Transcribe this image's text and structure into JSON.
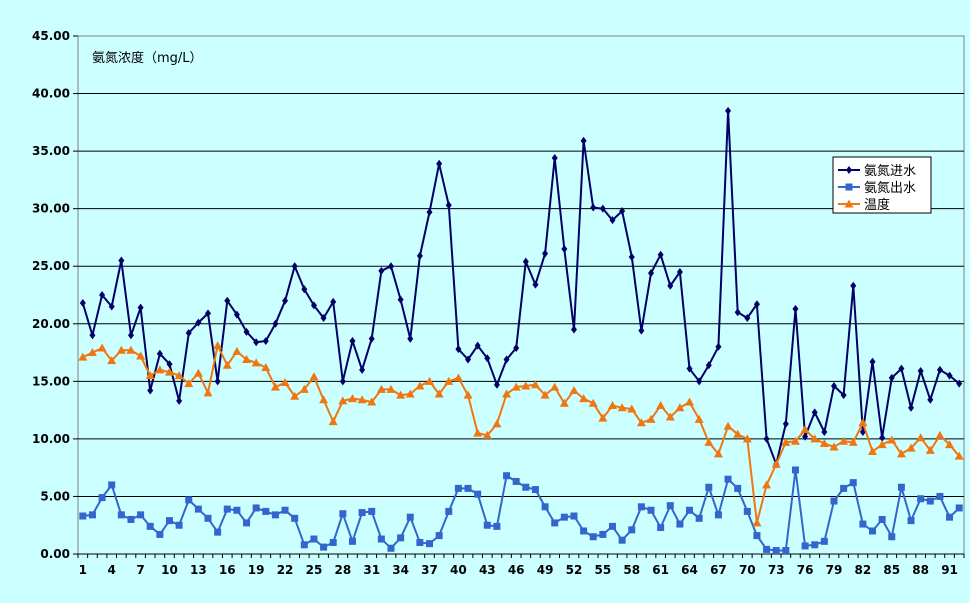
{
  "chart_data": {
    "type": "line",
    "title": "",
    "unit_label": "氨氮浓度（mg/L）",
    "xlabel": "",
    "ylabel": "",
    "ylim": [
      0,
      45
    ],
    "y_ticks": [
      "0.00",
      "5.00",
      "10.00",
      "15.00",
      "20.00",
      "25.00",
      "30.00",
      "35.00",
      "40.00",
      "45.00"
    ],
    "x_tick_labels": [
      1,
      4,
      7,
      10,
      13,
      16,
      19,
      22,
      25,
      28,
      31,
      34,
      37,
      40,
      43,
      46,
      49,
      52,
      55,
      58,
      61,
      64,
      67,
      70,
      73,
      76,
      79,
      82,
      85,
      88,
      91
    ],
    "x_count": 92,
    "grid": true,
    "legend_position": "right",
    "series": [
      {
        "name": "氨氮进水",
        "color": "#000066",
        "marker": "diamond",
        "values": [
          21.8,
          19.0,
          22.5,
          21.5,
          25.5,
          19.0,
          21.4,
          14.2,
          17.4,
          16.5,
          13.3,
          19.2,
          20.1,
          20.9,
          15.0,
          22.0,
          20.8,
          19.3,
          18.4,
          18.5,
          20.0,
          22.0,
          25.0,
          23.0,
          21.6,
          20.5,
          21.9,
          15.0,
          18.5,
          16.0,
          18.7,
          24.6,
          25.0,
          22.1,
          18.7,
          25.9,
          29.7,
          33.9,
          30.3,
          17.8,
          16.9,
          18.1,
          17.0,
          14.7,
          16.9,
          17.9,
          25.4,
          23.4,
          26.1,
          34.4,
          26.5,
          19.5,
          35.9,
          30.1,
          30.0,
          29.0,
          29.8,
          25.8,
          19.4,
          24.4,
          26.0,
          23.3,
          24.5,
          16.1,
          15.0,
          16.4,
          18.0,
          38.5,
          21.0,
          20.5,
          21.7,
          10.0,
          7.8,
          11.3,
          21.3,
          10.2,
          12.3,
          10.6,
          14.6,
          13.8,
          23.3,
          10.6,
          16.7,
          10.1,
          15.3,
          16.1,
          12.7,
          15.9,
          13.4,
          16.0,
          15.5,
          14.8
        ]
      },
      {
        "name": "氨氮出水",
        "color": "#3366cc",
        "marker": "square",
        "values": [
          3.3,
          3.4,
          4.9,
          6.0,
          3.4,
          3.0,
          3.4,
          2.4,
          1.7,
          2.9,
          2.5,
          4.7,
          3.9,
          3.1,
          1.9,
          3.9,
          3.8,
          2.7,
          4.0,
          3.7,
          3.4,
          3.8,
          3.1,
          0.8,
          1.3,
          0.6,
          1.0,
          3.5,
          1.1,
          3.6,
          3.7,
          1.3,
          0.5,
          1.4,
          3.2,
          1.0,
          0.9,
          1.6,
          3.7,
          5.7,
          5.7,
          5.2,
          2.5,
          2.4,
          6.8,
          6.3,
          5.8,
          5.6,
          4.1,
          2.7,
          3.2,
          3.3,
          2.0,
          1.5,
          1.7,
          2.4,
          1.2,
          2.1,
          4.1,
          3.8,
          2.3,
          4.2,
          2.6,
          3.8,
          3.1,
          5.8,
          3.4,
          6.5,
          5.7,
          3.7,
          1.6,
          0.4,
          0.3,
          0.3,
          7.3,
          0.7,
          0.8,
          1.1,
          4.6,
          5.7,
          6.2,
          2.6,
          2.0,
          3.0,
          1.5,
          5.8,
          2.9,
          4.8,
          4.6,
          5.0,
          3.2,
          4.0
        ]
      },
      {
        "name": "温度",
        "color": "#ee7711",
        "marker": "triangle",
        "values": [
          17.1,
          17.5,
          17.9,
          16.8,
          17.7,
          17.7,
          17.2,
          15.5,
          16.0,
          15.8,
          15.5,
          14.8,
          15.7,
          14.0,
          18.1,
          16.4,
          17.6,
          16.9,
          16.6,
          16.2,
          14.5,
          14.9,
          13.7,
          14.3,
          15.4,
          13.4,
          11.5,
          13.3,
          13.5,
          13.4,
          13.2,
          14.3,
          14.3,
          13.8,
          13.9,
          14.6,
          15.0,
          13.9,
          15.0,
          15.3,
          13.8,
          10.5,
          10.3,
          11.3,
          13.9,
          14.5,
          14.6,
          14.7,
          13.8,
          14.5,
          13.1,
          14.2,
          13.5,
          13.1,
          11.8,
          12.9,
          12.7,
          12.6,
          11.4,
          11.7,
          12.9,
          11.9,
          12.7,
          13.2,
          11.7,
          9.7,
          8.7,
          11.1,
          10.4,
          10.0,
          2.7,
          6.0,
          7.8,
          9.7,
          9.8,
          10.8,
          10.0,
          9.6,
          9.3,
          9.8,
          9.7,
          11.4,
          8.9,
          9.5,
          9.9,
          8.7,
          9.2,
          10.1,
          9.0,
          10.3,
          9.5,
          8.5
        ]
      }
    ]
  }
}
